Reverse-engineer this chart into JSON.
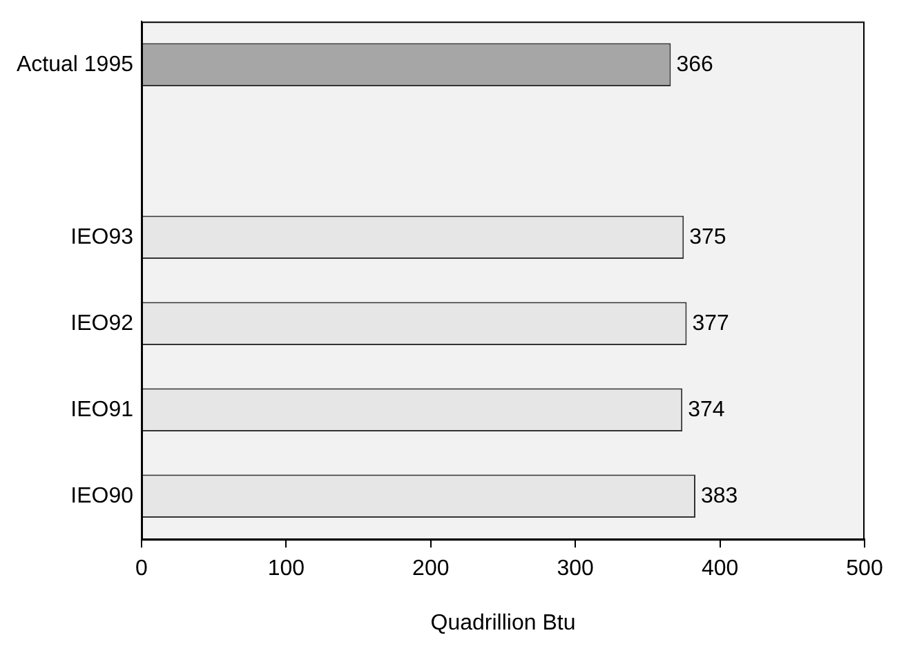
{
  "chart_data": {
    "type": "bar",
    "orientation": "horizontal",
    "xlabel": "Quadrillion Btu",
    "categories": [
      "Actual 1995",
      null,
      "IEO93",
      "IEO92",
      "IEO91",
      "IEO90"
    ],
    "values": [
      366,
      null,
      375,
      377,
      374,
      383
    ],
    "colors": [
      "#a6a6a6",
      null,
      "#e6e6e6",
      "#e6e6e6",
      "#e6e6e6",
      "#e6e6e6"
    ],
    "xlim": [
      0,
      500
    ],
    "xticks": [
      0,
      100,
      200,
      300,
      400,
      500
    ],
    "grid": false,
    "legend": false,
    "data_labels": true
  }
}
